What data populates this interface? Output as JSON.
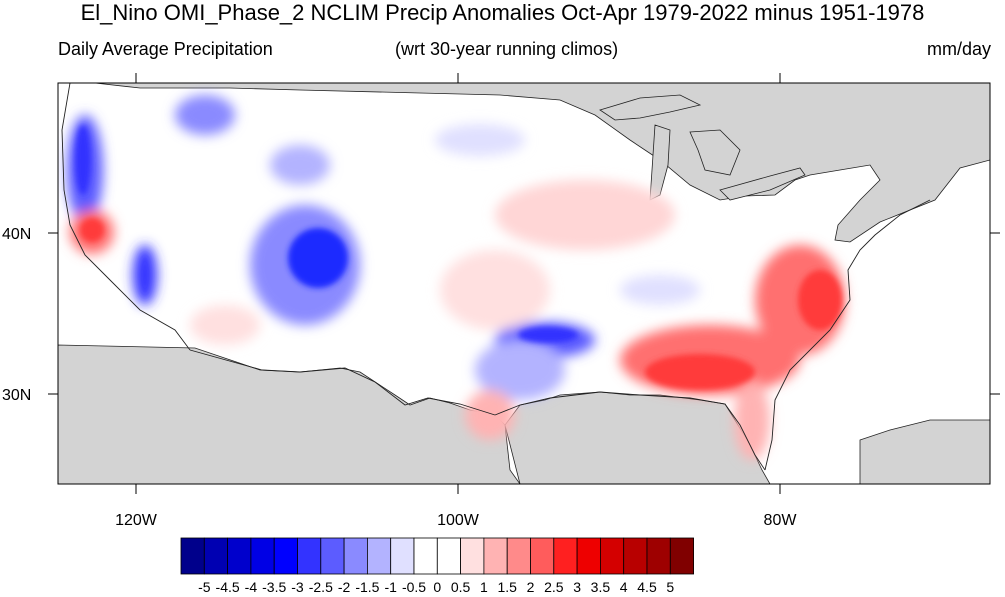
{
  "title": "El_Nino OMI_Phase_2 NCLIM Precip Anomalies Oct-Apr 1979-2022 minus 1951-1978",
  "subtitle_left": "Daily Average Precipitation",
  "subtitle_center": "(wrt 30-year running climos)",
  "subtitle_right": "mm/day",
  "lat_labels": [
    "40N",
    "30N"
  ],
  "lon_labels": [
    "120W",
    "100W",
    "80W"
  ],
  "colorbar": {
    "labels": [
      "-5",
      "-4.5",
      "-4",
      "-3.5",
      "-3",
      "-2.5",
      "-2",
      "-1.5",
      "-1",
      "-0.5",
      "0",
      "0.5",
      "1",
      "1.5",
      "2",
      "2.5",
      "3",
      "3.5",
      "4",
      "4.5",
      "5"
    ],
    "colors": [
      "#00008b",
      "#0000b2",
      "#0000cc",
      "#0000e5",
      "#0000ff",
      "#3333ff",
      "#5c5cff",
      "#8a8aff",
      "#b3b3ff",
      "#e0e0ff",
      "#ffffff",
      "#ffffff",
      "#ffe0e0",
      "#ffb3b3",
      "#ff8a8a",
      "#ff5c5c",
      "#ff2020",
      "#ee0000",
      "#d40000",
      "#b80000",
      "#9e0000",
      "#800000"
    ]
  },
  "colors": {
    "land_mask": "#d3d3d3",
    "strong_positive": "#ff3a3a",
    "strong_negative": "#1f2bff"
  }
}
